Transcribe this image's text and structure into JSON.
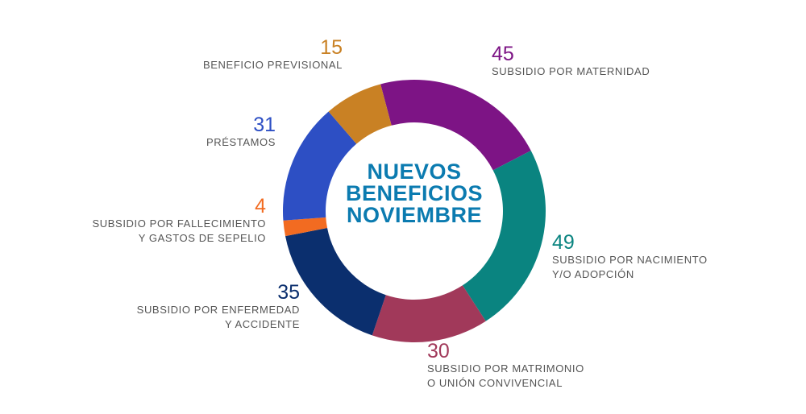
{
  "chart_data": {
    "type": "pie",
    "variant": "donut",
    "title_lines": [
      "NUEVOS",
      "BENEFICIOS",
      "NOVIEMBRE"
    ],
    "slices": [
      {
        "label_lines": [
          "SUBSIDIO POR MATERNIDAD"
        ],
        "value": 45,
        "color": "#7d1485"
      },
      {
        "label_lines": [
          "SUBSIDIO POR NACIMIENTO",
          "Y/O ADOPCIÓN"
        ],
        "value": 49,
        "color": "#0a8480"
      },
      {
        "label_lines": [
          "SUBSIDIO POR MATRIMONIO",
          "O UNIÓN CONVIVENCIAL"
        ],
        "value": 30,
        "color": "#a1395a"
      },
      {
        "label_lines": [
          "SUBSIDIO POR ENFERMEDAD",
          "Y ACCIDENTE"
        ],
        "value": 35,
        "color": "#0b2f6e"
      },
      {
        "label_lines": [
          "SUBSIDIO POR FALLECIMIENTO",
          "Y GASTOS DE SEPELIO"
        ],
        "value": 4,
        "color": "#f26b21"
      },
      {
        "label_lines": [
          "PRÉSTAMOS"
        ],
        "value": 31,
        "color": "#2d4fc4"
      },
      {
        "label_lines": [
          "BENEFICIO PREVISIONAL"
        ],
        "value": 15,
        "color": "#c98124"
      }
    ]
  }
}
